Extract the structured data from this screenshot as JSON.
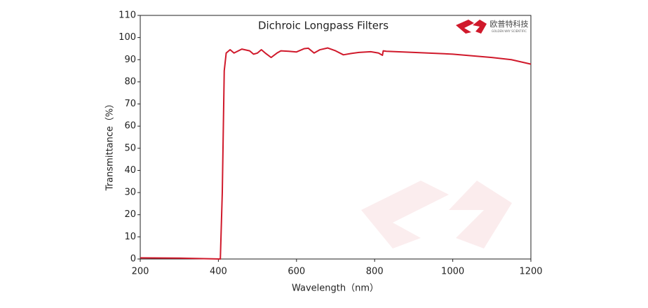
{
  "chart_data": {
    "type": "line",
    "title": "Dichroic Longpass Filters",
    "x_label": "Wavelength（nm）",
    "y_label": "Transmittance（%）",
    "logo_text": [
      "欧普特科技",
      "GOLDEN WAY SCIENTIFIC"
    ],
    "x": [
      200,
      300,
      405,
      410,
      415,
      420,
      430,
      440,
      460,
      480,
      490,
      500,
      510,
      520,
      535,
      550,
      560,
      580,
      600,
      620,
      630,
      645,
      660,
      680,
      700,
      720,
      740,
      760,
      790,
      810,
      820,
      822,
      830,
      900,
      1000,
      1100,
      1150,
      1200
    ],
    "values": [
      0.5,
      0.4,
      0,
      30,
      85,
      93,
      94.5,
      93,
      94.8,
      94,
      92.5,
      93,
      94.5,
      93,
      91,
      93,
      94,
      93.8,
      93.5,
      95,
      95.2,
      93,
      94.5,
      95.3,
      94,
      92.2,
      92.8,
      93.3,
      93.6,
      93,
      92,
      94,
      93.8,
      93.3,
      92.5,
      91,
      90,
      88
    ],
    "color": "#d0192b",
    "xlim": [
      200,
      1200
    ],
    "xticks": [
      200,
      400,
      600,
      800,
      1000,
      1200
    ],
    "ylim": [
      0,
      110
    ],
    "yticks": [
      0,
      10,
      20,
      30,
      40,
      50,
      60,
      70,
      80,
      90,
      100,
      110
    ],
    "grid": false
  }
}
